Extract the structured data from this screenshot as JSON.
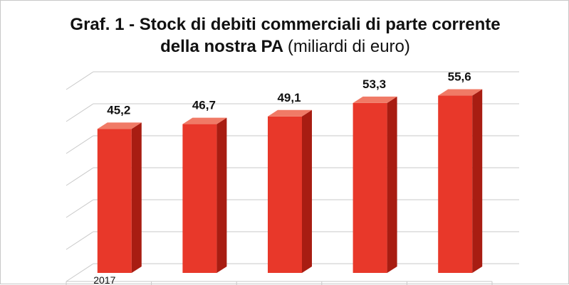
{
  "chart_data": {
    "type": "bar",
    "title_line1": "Graf.  1 - Stock di debiti commerciali di parte corrente",
    "title_line2_bold": "della nostra PA",
    "title_line2_normal": "(miliardi di euro)",
    "categories": [
      "2017",
      "",
      "",
      "",
      ""
    ],
    "values": [
      45.2,
      46.7,
      49.1,
      53.3,
      55.6
    ],
    "value_labels": [
      "45,2",
      "46,7",
      "49,1",
      "53,3",
      "55,6"
    ],
    "xlabel": "",
    "ylabel": "",
    "ylim": [
      0,
      60
    ],
    "grid": true,
    "legend": "none",
    "style": "3d-column",
    "colors": {
      "bar_front": "#e8382a",
      "bar_side": "#a81d12",
      "bar_top": "#f07a66",
      "grid": "#c9c9c9",
      "text": "#111111"
    }
  }
}
